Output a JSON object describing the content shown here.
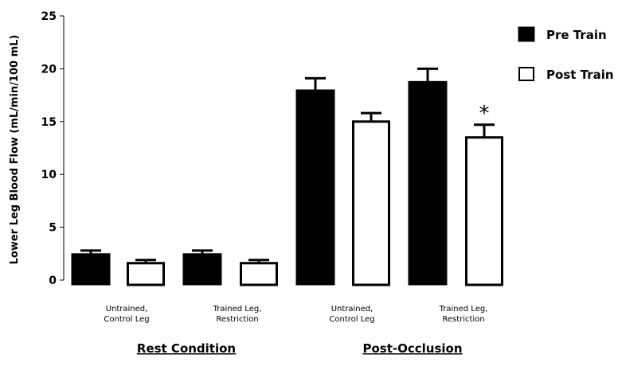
{
  "chart_data": {
    "type": "bar",
    "ylabel": "Lower Leg Blood Flow (mL/min/100 mL)",
    "ylim": [
      0,
      25
    ],
    "yticks": [
      0,
      5,
      10,
      15,
      20,
      25
    ],
    "groups": [
      {
        "label": "Rest Condition",
        "categories": [
          [
            "Untrained,",
            "Control Leg"
          ],
          [
            "Trained Leg,",
            "Restriction"
          ]
        ]
      },
      {
        "label": "Post-Occlusion",
        "categories": [
          [
            "Untrained,",
            "Control Leg"
          ],
          [
            "Trained Leg,",
            "Restriction"
          ]
        ]
      }
    ],
    "series": [
      {
        "name": "Pre Train",
        "fill": "#000000",
        "values": [
          2.5,
          2.5,
          18.0,
          18.8
        ],
        "errors": [
          0.3,
          0.3,
          1.1,
          1.2
        ]
      },
      {
        "name": "Post Train",
        "fill": "#ffffff",
        "values": [
          1.6,
          1.6,
          15.0,
          13.5
        ],
        "errors": [
          0.3,
          0.3,
          0.8,
          1.2
        ]
      }
    ],
    "annotations": [
      {
        "text": "*",
        "series": 1,
        "index": 3
      }
    ],
    "legend_position": "top-right"
  }
}
